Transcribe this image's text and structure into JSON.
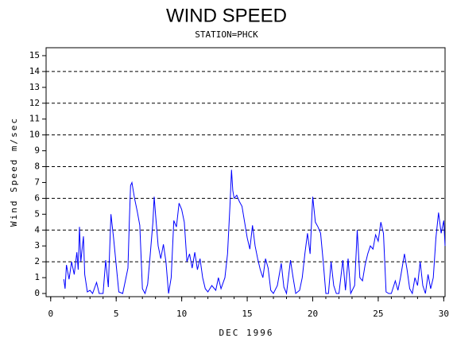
{
  "chart_data": {
    "type": "line",
    "title": "WIND SPEED",
    "subtitle": "STATION=PHCK",
    "x_label": "DEC 1996",
    "y_label": "Wind Speed m/sec",
    "xlim": [
      -0.35,
      30.1
    ],
    "ylim": [
      -0.2,
      15.5
    ],
    "xticks": [
      0,
      5,
      10,
      15,
      20,
      25,
      30
    ],
    "xminorticks": [
      0,
      1,
      2,
      3,
      4,
      5,
      6,
      7,
      8,
      9,
      10,
      11,
      12,
      13,
      14,
      15,
      16,
      17,
      18,
      19,
      20,
      21,
      22,
      23,
      24,
      25,
      26,
      27,
      28,
      29,
      30
    ],
    "yticks": [
      0,
      1,
      2,
      3,
      4,
      5,
      6,
      7,
      8,
      9,
      10,
      11,
      12,
      13,
      14,
      15
    ],
    "grid_lines": [
      2,
      4,
      6,
      8,
      10,
      12,
      14
    ],
    "x": [
      1.0,
      1.1,
      1.2,
      1.4,
      1.6,
      1.8,
      2.0,
      2.1,
      2.2,
      2.3,
      2.5,
      2.6,
      2.8,
      3.0,
      3.2,
      3.5,
      3.7,
      4.0,
      4.2,
      4.4,
      4.6,
      4.8,
      5.0,
      5.2,
      5.5,
      5.7,
      5.9,
      6.0,
      6.1,
      6.2,
      6.4,
      6.6,
      6.8,
      7.0,
      7.2,
      7.4,
      7.6,
      7.8,
      7.9,
      8.0,
      8.2,
      8.4,
      8.6,
      8.8,
      9.0,
      9.2,
      9.4,
      9.6,
      9.8,
      10.0,
      10.2,
      10.4,
      10.6,
      10.8,
      11.0,
      11.2,
      11.4,
      11.6,
      11.8,
      12.0,
      12.3,
      12.6,
      12.8,
      13.0,
      13.3,
      13.5,
      13.7,
      13.8,
      13.9,
      14.0,
      14.2,
      14.4,
      14.6,
      14.8,
      15.0,
      15.2,
      15.4,
      15.6,
      15.8,
      16.0,
      16.2,
      16.4,
      16.6,
      16.8,
      17.0,
      17.3,
      17.6,
      17.8,
      18.0,
      18.3,
      18.5,
      18.7,
      19.0,
      19.2,
      19.4,
      19.6,
      19.8,
      20.0,
      20.2,
      20.4,
      20.6,
      20.8,
      21.0,
      21.2,
      21.4,
      21.6,
      21.8,
      22.0,
      22.3,
      22.5,
      22.7,
      22.9,
      23.2,
      23.4,
      23.6,
      23.8,
      24.0,
      24.2,
      24.4,
      24.6,
      24.8,
      25.0,
      25.2,
      25.4,
      25.6,
      25.8,
      26.0,
      26.3,
      26.5,
      26.7,
      27.0,
      27.2,
      27.4,
      27.6,
      27.8,
      28.0,
      28.2,
      28.4,
      28.6,
      28.8,
      29.0,
      29.2,
      29.4,
      29.6,
      29.8,
      30.0,
      30.1
    ],
    "series": [
      {
        "color": "#0000ff",
        "values": [
          0.9,
          0.3,
          1.8,
          0.9,
          2.0,
          1.2,
          2.6,
          1.5,
          4.2,
          2.0,
          3.6,
          1.2,
          0.1,
          0.2,
          0,
          0.7,
          0,
          0,
          2.1,
          0.4,
          5.0,
          3.5,
          1.8,
          0.1,
          0,
          0.8,
          1.6,
          4.5,
          6.8,
          7.0,
          6.0,
          5.2,
          4.3,
          0.3,
          0,
          0.6,
          2.5,
          4.5,
          6.1,
          5.0,
          3.0,
          2.2,
          3.1,
          2.0,
          0,
          1.0,
          4.6,
          4.2,
          5.7,
          5.3,
          4.5,
          2.0,
          2.5,
          1.6,
          2.6,
          1.5,
          2.2,
          1.0,
          0.3,
          0.1,
          0.5,
          0.2,
          1.0,
          0.3,
          1.0,
          2.5,
          5.8,
          7.8,
          6.5,
          6.0,
          6.2,
          5.8,
          5.5,
          4.5,
          3.5,
          2.8,
          4.3,
          3.0,
          2.2,
          1.5,
          1.0,
          2.2,
          1.6,
          0.2,
          0,
          0.5,
          1.9,
          0.4,
          0,
          2.1,
          1.0,
          0,
          0.2,
          1.0,
          2.5,
          3.8,
          2.5,
          6.1,
          4.5,
          4.2,
          3.8,
          2.0,
          0,
          0,
          2.0,
          0.5,
          0,
          0,
          2.1,
          0.2,
          2.2,
          0,
          0.5,
          4.0,
          1.0,
          0.8,
          1.8,
          2.5,
          3.0,
          2.8,
          3.7,
          3.3,
          4.5,
          3.8,
          0.1,
          0,
          0,
          0.8,
          0.2,
          1.0,
          2.5,
          1.5,
          0.3,
          0,
          1.0,
          0.5,
          2.0,
          0.5,
          0,
          1.2,
          0.3,
          1.0,
          3.5,
          5.1,
          3.8,
          4.6,
          3.0
        ]
      }
    ]
  }
}
